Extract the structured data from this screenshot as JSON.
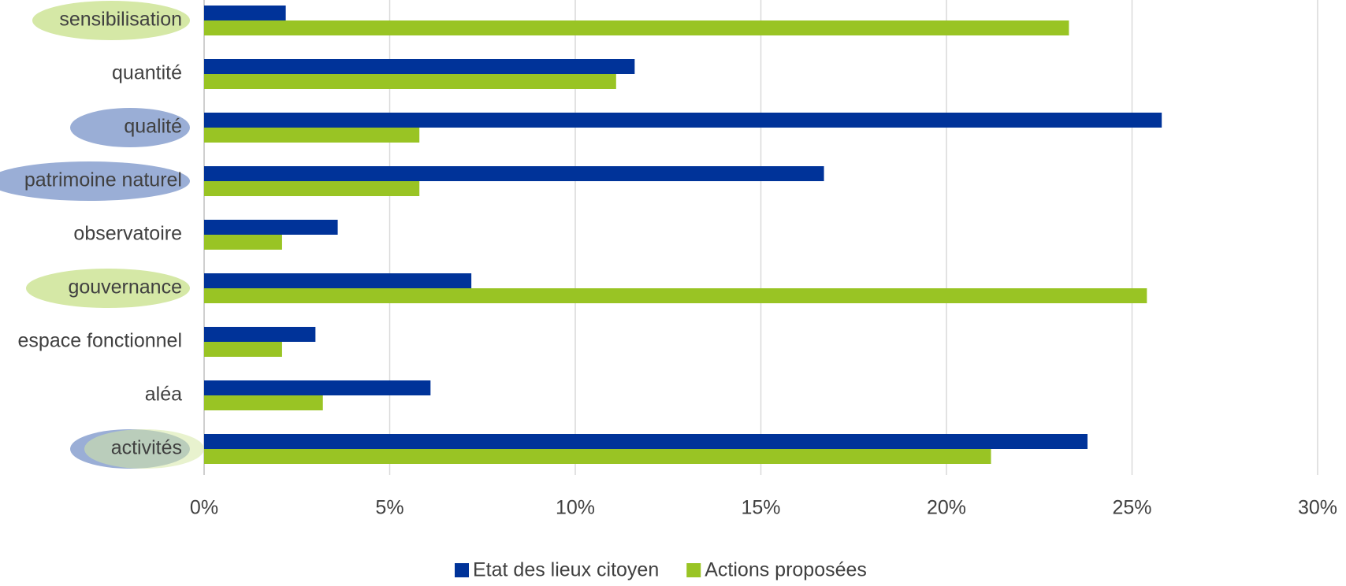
{
  "chart_data": {
    "type": "bar",
    "orientation": "horizontal",
    "categories": [
      "sensibilisation",
      "quantité",
      "qualité",
      "patrimoine naturel",
      "observatoire",
      "gouvernance",
      "espace fonctionnel",
      "aléa",
      "activités"
    ],
    "series": [
      {
        "name": "Etat des lieux citoyen",
        "color": "#003399",
        "values": [
          2.2,
          11.6,
          25.8,
          16.7,
          3.6,
          7.2,
          3.0,
          6.1,
          23.8
        ]
      },
      {
        "name": "Actions proposées",
        "color": "#99c424",
        "values": [
          23.3,
          11.1,
          5.8,
          5.8,
          2.1,
          25.4,
          2.1,
          3.2,
          21.2
        ]
      }
    ],
    "xlim": [
      0,
      30
    ],
    "xticks": [
      {
        "value": 0,
        "label": "0%"
      },
      {
        "value": 5,
        "label": "5%"
      },
      {
        "value": 10,
        "label": "10%"
      },
      {
        "value": 15,
        "label": "15%"
      },
      {
        "value": 20,
        "label": "20%"
      },
      {
        "value": 25,
        "label": "25%"
      },
      {
        "value": 30,
        "label": "30%"
      }
    ],
    "grid": true,
    "legend": "bottom"
  }
}
